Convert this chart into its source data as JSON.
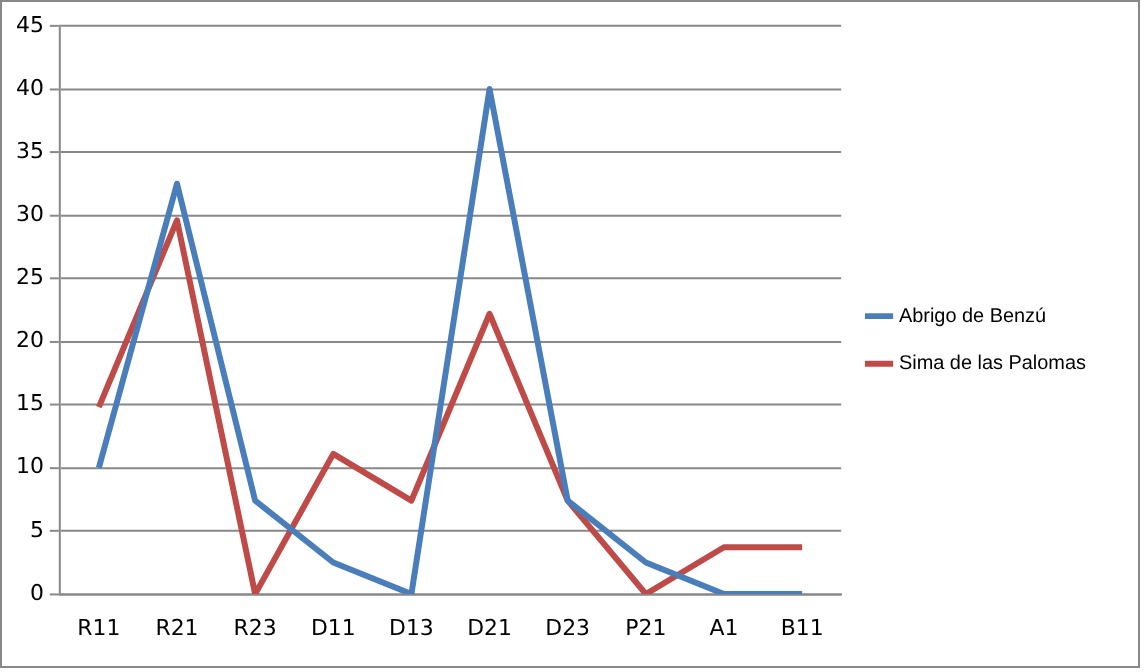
{
  "chart_data": {
    "type": "line",
    "categories": [
      "R11",
      "R21",
      "R23",
      "D11",
      "D13",
      "D21",
      "D23",
      "P21",
      "A1",
      "B11"
    ],
    "series": [
      {
        "name": "Abrigo de Benzú",
        "color": "#4a7ebb",
        "values": [
          10,
          32.5,
          7.4,
          2.5,
          0,
          40,
          7.4,
          2.5,
          0,
          0
        ]
      },
      {
        "name": "Sima de las Palomas",
        "color": "#be4b48",
        "values": [
          14.8,
          29.6,
          0,
          11.1,
          7.4,
          22.2,
          7.4,
          0,
          3.7,
          3.7
        ]
      }
    ],
    "ylim": [
      0,
      45
    ],
    "yticks": [
      0,
      5,
      10,
      15,
      20,
      25,
      30,
      35,
      40,
      45
    ],
    "grid": "y",
    "legend": "right",
    "marker": "none",
    "line_style": "solid"
  }
}
